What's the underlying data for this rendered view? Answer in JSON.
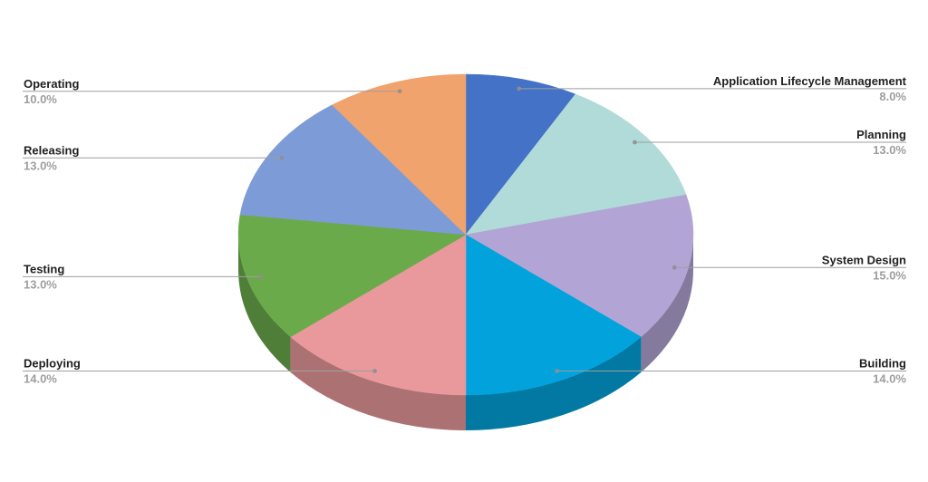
{
  "chart_data": {
    "type": "pie",
    "is_3d": true,
    "title": "",
    "direction": "clockwise",
    "start_angle_deg": 0,
    "legend_position": "labeled-callouts",
    "background_color": "#FFFFFF",
    "colors": {
      "label_text": "#212121",
      "percent_text": "#9E9E9E",
      "leader_line": "#9E9E9E",
      "leader_dot": "#8F8F8F"
    },
    "slices": [
      {
        "label": "Application Lifecycle Management",
        "value": 8,
        "pct_label": "8.0%",
        "color": "#4472C6"
      },
      {
        "label": "Planning",
        "value": 13,
        "pct_label": "13.0%",
        "color": "#B1DBD9"
      },
      {
        "label": "System Design",
        "value": 15,
        "pct_label": "15.0%",
        "color": "#B2A5D5"
      },
      {
        "label": "Building",
        "value": 14,
        "pct_label": "14.0%",
        "color": "#02A3DC"
      },
      {
        "label": "Deploying",
        "value": 14,
        "pct_label": "14.0%",
        "color": "#E9999B"
      },
      {
        "label": "Testing",
        "value": 13,
        "pct_label": "13.0%",
        "color": "#6AAA4B"
      },
      {
        "label": "Releasing",
        "value": 13,
        "pct_label": "13.0%",
        "color": "#7D9CD7"
      },
      {
        "label": "Operating",
        "value": 10,
        "pct_label": "10.0%",
        "color": "#F1A36D"
      }
    ]
  }
}
